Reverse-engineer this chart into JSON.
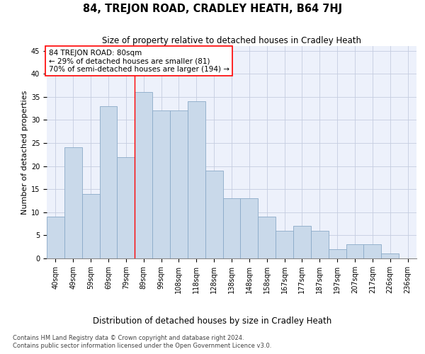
{
  "title": "84, TREJON ROAD, CRADLEY HEATH, B64 7HJ",
  "subtitle": "Size of property relative to detached houses in Cradley Heath",
  "xlabel": "Distribution of detached houses by size in Cradley Heath",
  "ylabel": "Number of detached properties",
  "categories": [
    "40sqm",
    "49sqm",
    "59sqm",
    "69sqm",
    "79sqm",
    "89sqm",
    "99sqm",
    "108sqm",
    "118sqm",
    "128sqm",
    "138sqm",
    "148sqm",
    "158sqm",
    "167sqm",
    "177sqm",
    "187sqm",
    "197sqm",
    "207sqm",
    "217sqm",
    "226sqm",
    "236sqm"
  ],
  "values": [
    9,
    24,
    14,
    33,
    22,
    36,
    32,
    32,
    34,
    19,
    13,
    13,
    9,
    6,
    7,
    6,
    2,
    3,
    3,
    1,
    0
  ],
  "bar_color": "#c9d9ea",
  "bar_edge_color": "#8aaac8",
  "red_line_x": 4,
  "ylim": [
    0,
    46
  ],
  "yticks": [
    0,
    5,
    10,
    15,
    20,
    25,
    30,
    35,
    40,
    45
  ],
  "annotation_title": "84 TREJON ROAD: 80sqm",
  "annotation_line1": "← 29% of detached houses are smaller (81)",
  "annotation_line2": "70% of semi-detached houses are larger (194) →",
  "footer1": "Contains HM Land Registry data © Crown copyright and database right 2024.",
  "footer2": "Contains public sector information licensed under the Open Government Licence v3.0.",
  "bg_color": "#edf1fb",
  "grid_color": "#c5cde0",
  "title_fontsize": 10.5,
  "subtitle_fontsize": 8.5,
  "ylabel_fontsize": 8,
  "xlabel_fontsize": 8.5,
  "tick_fontsize": 7,
  "annotation_fontsize": 7.5,
  "footer_fontsize": 6
}
